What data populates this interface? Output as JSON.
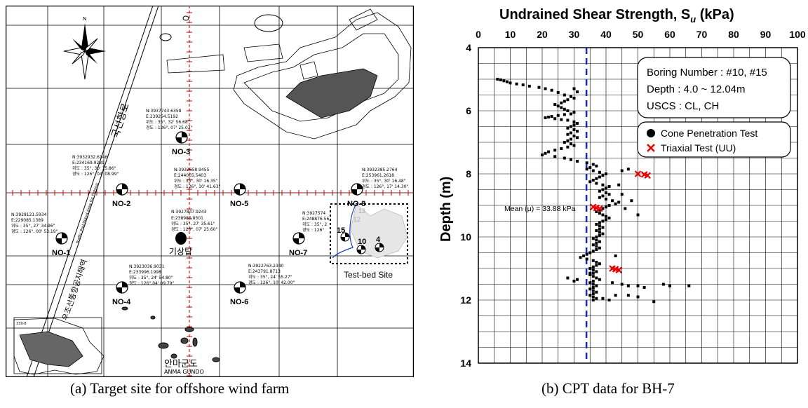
{
  "captions": {
    "a": "(a) Target site for offshore wind farm",
    "b": "(b) CPT data for BH-7"
  },
  "map": {
    "stations": [
      {
        "id": "NO-1",
        "coord_n": "N:3928121.5934",
        "coord_e": "E:229085.1389",
        "lat": "위도 : 35°, 27' 34.96\"",
        "lon": "경도 : 126°, 00' 53.19\""
      },
      {
        "id": "NO-2",
        "coord_n": "N:3932932.6146",
        "coord_e": "E:234169.9289",
        "lat": "위도 : 35°, 30' 15.86\"",
        "lon": "경도 : 126°, 04' 08.99\""
      },
      {
        "id": "NO-3",
        "coord_n": "N:3937743.6358",
        "coord_e": "E:239254.5192",
        "lat": "위도 : 35°, 32' 56.68\"",
        "lon": "경도 : 126°, 07' 25.03\""
      },
      {
        "id": "NO-4",
        "coord_n": "N:3923036.9031",
        "coord_e": "E:233996.1998",
        "lat": "위도 : 35°, 24' 54.80\"",
        "lon": "경도 : 126°,04' 09.79\""
      },
      {
        "id": "NO-5",
        "coord_n": "N:3932658.9455",
        "coord_e": "E:244065.5403",
        "lat": "위도 : 35°, 30' 16.35\"",
        "lon": "경도 : 126°, 10' 41.63\""
      },
      {
        "id": "NO-6",
        "coord_n": "N:3922763.2340",
        "coord_e": "E:243791.8713",
        "lat": "위도 : 35°, 24' 55.27\"",
        "lon": "경도 : 126°, 10' 42.00\""
      },
      {
        "id": "NO-7",
        "coord_n": "N:3927574",
        "coord_e": "E:248876.56",
        "lat": "위도 : 35°, 2",
        "lon": "경도 : 126°"
      },
      {
        "id": "NO-8",
        "coord_n": "N:3932385.2764",
        "coord_e": "E:253961.2618",
        "lat": "위도 : 35°, 30' 16.48\"",
        "lon": "경도 : 126°, 17' 14.30\""
      }
    ],
    "center": {
      "label": "기상탑",
      "coord_n": "N:3927847.9243",
      "coord_e": "E:238980.8501",
      "lat": "위도 : 35°, 27' 35.61\"",
      "lon": "경도 : 126°, 07' 25.60\""
    },
    "borings": [
      "15",
      "10",
      "4",
      "13",
      "12"
    ],
    "test_bed_label": "Test-bed Site",
    "island_label_kr": "안마군도",
    "island_label_en": "ANMA GUNDO",
    "north_label": "N",
    "route_label_kr": "국선항로",
    "route_label_kr2": "우조선통항공지해역",
    "route_label_en": "Traffic Prohibited Area for Fishing",
    "corner_label": "339-8"
  },
  "chart_data": {
    "type": "scatter",
    "title": "Undrained Shear Strength, S",
    "title_sub": "u",
    "title_unit": " (kPa)",
    "ylabel": "Depth (m)",
    "xlim": [
      0,
      100
    ],
    "ylim": [
      4,
      14
    ],
    "y_inverted": true,
    "x_axis_position": "top",
    "xticks": [
      0,
      10,
      20,
      30,
      40,
      50,
      60,
      70,
      80,
      90,
      100
    ],
    "yticks": [
      4,
      6,
      8,
      10,
      12,
      14
    ],
    "grid": true,
    "info_box": [
      "Boring Number :  #10, #15",
      "Depth : 4.0 ~ 12.04m",
      "USCS : CL, CH"
    ],
    "legend": {
      "placement": "top-right",
      "entries": [
        "Cone Penetration Test",
        "Triaxial Test (UU)"
      ]
    },
    "mean": {
      "value": 33.88,
      "label": "Mean (μ) = 33.88 kPa"
    },
    "series": [
      {
        "name": "Cone Penetration Test",
        "marker": "square",
        "color": "#000000",
        "points": [
          [
            6,
            5.0
          ],
          [
            7,
            5.02
          ],
          [
            8,
            5.05
          ],
          [
            9,
            5.08
          ],
          [
            10,
            5.12
          ],
          [
            12,
            5.15
          ],
          [
            14,
            5.18
          ],
          [
            16,
            5.22
          ],
          [
            19,
            5.26
          ],
          [
            21,
            5.3
          ],
          [
            23,
            5.35
          ],
          [
            25,
            5.42
          ],
          [
            27,
            5.5
          ],
          [
            29,
            5.55
          ],
          [
            30,
            5.3
          ],
          [
            31,
            5.4
          ],
          [
            30,
            5.6
          ],
          [
            28,
            5.65
          ],
          [
            27,
            5.7
          ],
          [
            26,
            5.75
          ],
          [
            24,
            5.8
          ],
          [
            25,
            5.85
          ],
          [
            26,
            5.9
          ],
          [
            27,
            5.95
          ],
          [
            28,
            6.0
          ],
          [
            30,
            6.05
          ],
          [
            29,
            6.1
          ],
          [
            27,
            6.12
          ],
          [
            25,
            6.15
          ],
          [
            23,
            6.18
          ],
          [
            22,
            6.2
          ],
          [
            21,
            6.22
          ],
          [
            24,
            6.25
          ],
          [
            26,
            6.28
          ],
          [
            28,
            6.3
          ],
          [
            30,
            6.35
          ],
          [
            31,
            6.4
          ],
          [
            30,
            6.45
          ],
          [
            29,
            6.5
          ],
          [
            28,
            6.55
          ],
          [
            30,
            6.6
          ],
          [
            31,
            6.65
          ],
          [
            29,
            6.7
          ],
          [
            28,
            6.75
          ],
          [
            30,
            6.8
          ],
          [
            31,
            6.85
          ],
          [
            29,
            6.9
          ],
          [
            28,
            6.95
          ],
          [
            27,
            7.0
          ],
          [
            29,
            7.05
          ],
          [
            30,
            7.1
          ],
          [
            28,
            7.15
          ],
          [
            26,
            7.2
          ],
          [
            24,
            7.25
          ],
          [
            22,
            7.3
          ],
          [
            21,
            7.35
          ],
          [
            20,
            7.4
          ],
          [
            24,
            7.45
          ],
          [
            27,
            7.5
          ],
          [
            29,
            7.55
          ],
          [
            31,
            7.6
          ],
          [
            34,
            7.65
          ],
          [
            36,
            7.7
          ],
          [
            37,
            7.75
          ],
          [
            35,
            7.8
          ],
          [
            34,
            7.85
          ],
          [
            36,
            7.9
          ],
          [
            38,
            7.95
          ],
          [
            40,
            8.0
          ],
          [
            39,
            8.05
          ],
          [
            38,
            8.1
          ],
          [
            37,
            8.15
          ],
          [
            36,
            8.2
          ],
          [
            35,
            8.25
          ],
          [
            37,
            8.3
          ],
          [
            39,
            8.35
          ],
          [
            41,
            8.4
          ],
          [
            40,
            8.45
          ],
          [
            39,
            8.5
          ],
          [
            38,
            8.55
          ],
          [
            40,
            8.6
          ],
          [
            41,
            8.65
          ],
          [
            39,
            8.7
          ],
          [
            38,
            8.75
          ],
          [
            40,
            8.8
          ],
          [
            42,
            8.85
          ],
          [
            44,
            8.9
          ],
          [
            43,
            8.95
          ],
          [
            41,
            9.0
          ],
          [
            40,
            9.05
          ],
          [
            39,
            9.1
          ],
          [
            38,
            9.15
          ],
          [
            37,
            9.2
          ],
          [
            38,
            9.25
          ],
          [
            39,
            9.3
          ],
          [
            40,
            9.35
          ],
          [
            41,
            9.4
          ],
          [
            40,
            9.45
          ],
          [
            39,
            9.5
          ],
          [
            38,
            9.55
          ],
          [
            37,
            9.6
          ],
          [
            38,
            9.65
          ],
          [
            39,
            9.7
          ],
          [
            38,
            9.75
          ],
          [
            37,
            9.8
          ],
          [
            38,
            9.85
          ],
          [
            39,
            9.9
          ],
          [
            38,
            9.95
          ],
          [
            37,
            10.0
          ],
          [
            36,
            10.05
          ],
          [
            37,
            10.1
          ],
          [
            38,
            10.15
          ],
          [
            37,
            10.2
          ],
          [
            36,
            10.25
          ],
          [
            37,
            10.3
          ],
          [
            38,
            10.35
          ],
          [
            37,
            10.4
          ],
          [
            36,
            10.45
          ],
          [
            35,
            10.5
          ],
          [
            34,
            10.55
          ],
          [
            33,
            10.6
          ],
          [
            32,
            10.65
          ],
          [
            34,
            10.7
          ],
          [
            36,
            10.75
          ],
          [
            37,
            10.8
          ],
          [
            38,
            10.85
          ],
          [
            37,
            10.9
          ],
          [
            36,
            10.95
          ],
          [
            35,
            11.0
          ],
          [
            36,
            11.05
          ],
          [
            37,
            11.1
          ],
          [
            36,
            11.15
          ],
          [
            35,
            11.2
          ],
          [
            36,
            11.25
          ],
          [
            37,
            11.3
          ],
          [
            38,
            11.35
          ],
          [
            36,
            11.4
          ],
          [
            35,
            11.45
          ],
          [
            36,
            11.5
          ],
          [
            37,
            11.55
          ],
          [
            36,
            11.6
          ],
          [
            35,
            11.65
          ],
          [
            36,
            11.7
          ],
          [
            37,
            11.75
          ],
          [
            36,
            11.8
          ],
          [
            35,
            11.85
          ],
          [
            36,
            11.9
          ],
          [
            37,
            11.95
          ],
          [
            36,
            12.0
          ],
          [
            45,
            7.9
          ],
          [
            47,
            7.85
          ],
          [
            44,
            8.35
          ],
          [
            45,
            8.65
          ],
          [
            48,
            8.85
          ],
          [
            50,
            9.3
          ],
          [
            46,
            9.1
          ],
          [
            43,
            10.6
          ],
          [
            44,
            11.05
          ],
          [
            42,
            11.45
          ],
          [
            45,
            11.5
          ],
          [
            47,
            11.55
          ],
          [
            50,
            11.55
          ],
          [
            52,
            11.6
          ],
          [
            58,
            11.5
          ],
          [
            60,
            11.55
          ],
          [
            66,
            11.55
          ],
          [
            43,
            11.85
          ],
          [
            47,
            11.85
          ],
          [
            50,
            11.9
          ],
          [
            55,
            12.05
          ],
          [
            41,
            12.0
          ],
          [
            39,
            11.95
          ],
          [
            30,
            11.4
          ],
          [
            28,
            11.3
          ],
          [
            31,
            11.35
          ],
          [
            35,
            11.15
          ]
        ]
      },
      {
        "name": "Triaxial Test (UU)",
        "marker": "x",
        "color": "#e60000",
        "points": [
          [
            50,
            8.0
          ],
          [
            52,
            8.02
          ],
          [
            53,
            8.05
          ],
          [
            36,
            9.05
          ],
          [
            37,
            9.08
          ],
          [
            38,
            9.1
          ],
          [
            42,
            11.0
          ],
          [
            43,
            11.02
          ],
          [
            44,
            11.05
          ]
        ]
      }
    ]
  }
}
